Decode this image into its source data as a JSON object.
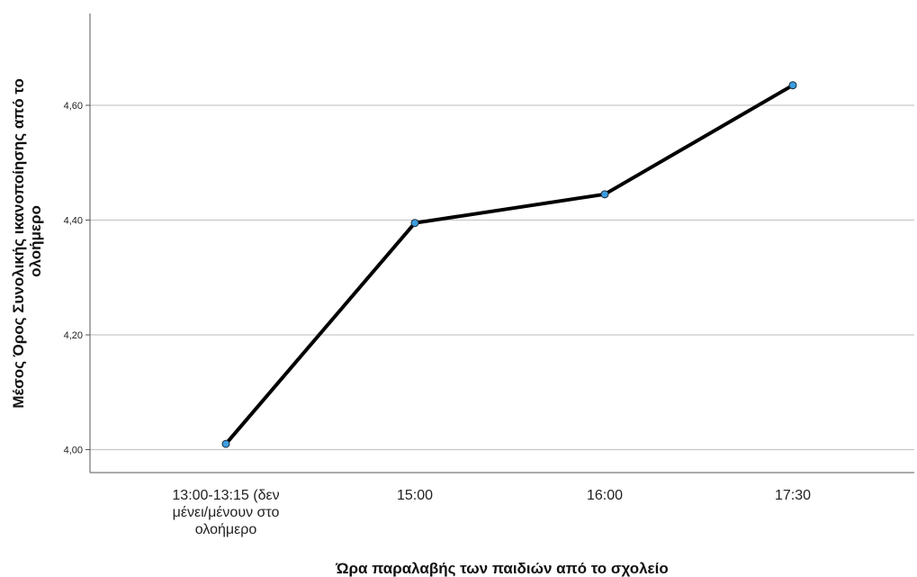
{
  "chart_data": {
    "type": "line",
    "categories": [
      "13:00-13:15 (δεν μένει/μένουν στο ολοήμερο",
      "15:00",
      "16:00",
      "17:30"
    ],
    "category_label_lines": [
      [
        "13:00-13:15 (δεν",
        "μένει/μένουν στο",
        "ολοήμερο"
      ],
      [
        "15:00"
      ],
      [
        "16:00"
      ],
      [
        "17:30"
      ]
    ],
    "series": [
      {
        "values": [
          4.01,
          4.395,
          4.445,
          4.635
        ]
      }
    ],
    "xlabel": "Ώρα παραλαβής των παιδιών από το σχολείο",
    "ylabel_lines": [
      "Μέσος Όρος Συνολικής ικανοποίησης από το",
      "ολοήμερο"
    ],
    "ylim": [
      3.96,
      4.76
    ],
    "yticks": [
      4.0,
      4.2,
      4.4,
      4.6
    ],
    "ytick_labels": [
      "4,00",
      "4,20",
      "4,40",
      "4,60"
    ],
    "grid": true,
    "colors": {
      "line": "#000000",
      "marker": "#3c9ee0",
      "grid": "#c8c8c8",
      "axis": "#555555"
    }
  }
}
